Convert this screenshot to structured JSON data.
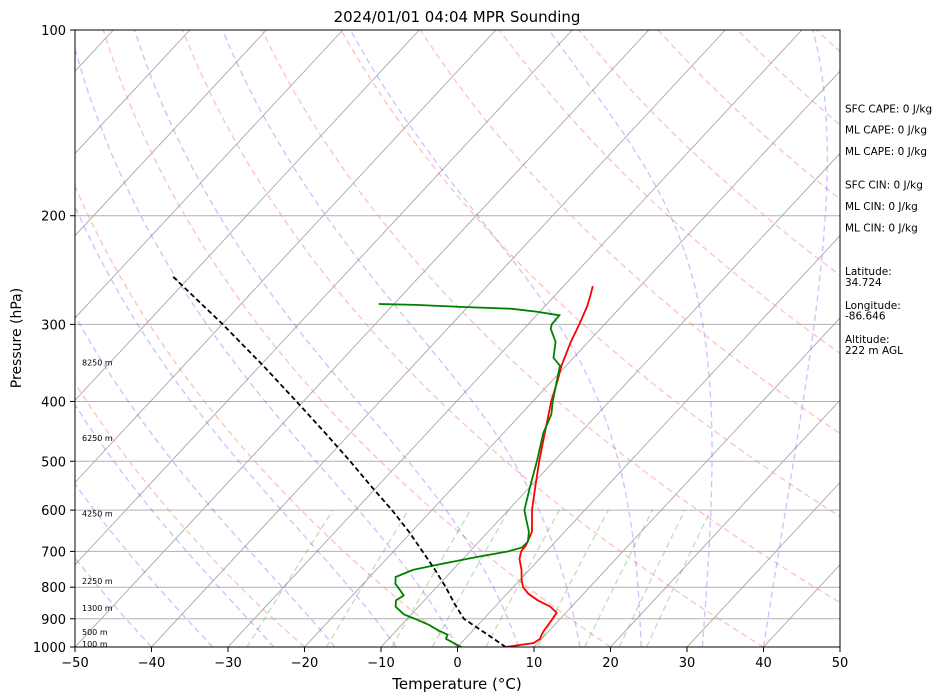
{
  "chart_data": {
    "type": "line",
    "title": "2024/01/01 04:04 MPR Sounding",
    "xlabel": "Temperature (°C)",
    "ylabel": "Pressure (hPa)",
    "xlim": [
      -50,
      50
    ],
    "ylim": [
      1000,
      100
    ],
    "yscale": "log",
    "x_ticks": [
      -50,
      -40,
      -30,
      -20,
      -10,
      0,
      10,
      20,
      30,
      40,
      50
    ],
    "y_ticks": [
      100,
      200,
      300,
      400,
      500,
      600,
      700,
      800,
      900,
      1000
    ],
    "grid": "horizontal pressure lines",
    "skew_isotherms": true,
    "background_lines": [
      "dry adiabats",
      "moist adiabats",
      "mixing ratio lines"
    ],
    "series": [
      {
        "key": "temperature",
        "color": "#ff0000",
        "points": [
          [
            1000,
            6.3
          ],
          [
            985,
            9.5
          ],
          [
            970,
            9.8
          ],
          [
            955,
            9.5
          ],
          [
            940,
            9.3
          ],
          [
            925,
            9.2
          ],
          [
            900,
            9.0
          ],
          [
            880,
            8.8
          ],
          [
            860,
            7.2
          ],
          [
            840,
            4.8
          ],
          [
            820,
            2.8
          ],
          [
            800,
            1.3
          ],
          [
            780,
            0.3
          ],
          [
            750,
            -1.0
          ],
          [
            720,
            -2.6
          ],
          [
            700,
            -3.3
          ],
          [
            685,
            -3.4
          ],
          [
            650,
            -4.3
          ],
          [
            600,
            -6.9
          ],
          [
            550,
            -9.3
          ],
          [
            500,
            -11.9
          ],
          [
            450,
            -14.6
          ],
          [
            400,
            -17.6
          ],
          [
            370,
            -19.3
          ],
          [
            350,
            -20.6
          ],
          [
            320,
            -22.3
          ],
          [
            300,
            -23.3
          ],
          [
            280,
            -24.5
          ],
          [
            270,
            -25.3
          ],
          [
            260,
            -26.2
          ]
        ]
      },
      {
        "key": "dewpoint",
        "color": "#008000",
        "points": [
          [
            1000,
            0.5
          ],
          [
            995,
            0.0
          ],
          [
            985,
            -1.0
          ],
          [
            970,
            -2.5
          ],
          [
            955,
            -2.8
          ],
          [
            940,
            -4.5
          ],
          [
            920,
            -6.5
          ],
          [
            900,
            -9.0
          ],
          [
            885,
            -11.0
          ],
          [
            860,
            -13.0
          ],
          [
            840,
            -13.7
          ],
          [
            825,
            -13.3
          ],
          [
            812,
            -14.2
          ],
          [
            790,
            -15.8
          ],
          [
            770,
            -16.6
          ],
          [
            750,
            -15.2
          ],
          [
            735,
            -12.5
          ],
          [
            715,
            -8.5
          ],
          [
            700,
            -5.0
          ],
          [
            690,
            -3.7
          ],
          [
            675,
            -3.6
          ],
          [
            650,
            -4.7
          ],
          [
            620,
            -6.6
          ],
          [
            600,
            -7.9
          ],
          [
            550,
            -10.0
          ],
          [
            500,
            -12.2
          ],
          [
            450,
            -14.8
          ],
          [
            420,
            -16.0
          ],
          [
            400,
            -17.4
          ],
          [
            370,
            -19.4
          ],
          [
            350,
            -20.8
          ],
          [
            340,
            -22.6
          ],
          [
            320,
            -24.3
          ],
          [
            305,
            -26.5
          ],
          [
            300,
            -26.9
          ],
          [
            290,
            -27.0
          ],
          [
            286,
            -30.5
          ],
          [
            283,
            -34.0
          ],
          [
            281,
            -41.0
          ],
          [
            279,
            -47.0
          ],
          [
            278,
            -52.0
          ]
        ]
      },
      {
        "key": "parcel",
        "color": "#000000",
        "style": "dashed",
        "points": [
          [
            1000,
            6.3
          ],
          [
            950,
            2.0
          ],
          [
            900,
            -2.6
          ],
          [
            850,
            -5.7
          ],
          [
            800,
            -8.8
          ],
          [
            750,
            -12.3
          ],
          [
            700,
            -16.2
          ],
          [
            650,
            -20.4
          ],
          [
            600,
            -25.2
          ],
          [
            550,
            -30.7
          ],
          [
            500,
            -36.6
          ],
          [
            450,
            -43.3
          ],
          [
            400,
            -50.9
          ],
          [
            350,
            -59.6
          ],
          [
            300,
            -69.9
          ],
          [
            250,
            -82.5
          ]
        ]
      }
    ],
    "height_labels": [
      {
        "text": "100 m",
        "p": 988
      },
      {
        "text": "500 m",
        "p": 945
      },
      {
        "text": "1300 m",
        "p": 865
      },
      {
        "text": "2250 m",
        "p": 782
      },
      {
        "text": "4250 m",
        "p": 608
      },
      {
        "text": "6250 m",
        "p": 458
      },
      {
        "text": "8250 m",
        "p": 346
      }
    ],
    "annotations": [
      {
        "text": "SFC CAPE: 0 J/kg",
        "p": 134
      },
      {
        "text": "ML CAPE: 0 J/kg",
        "p": 145
      },
      {
        "text": "ML CAPE: 0 J/kg",
        "p": 157
      },
      {
        "text": "SFC CIN: 0 J/kg",
        "p": 178
      },
      {
        "text": "ML CIN: 0 J/kg",
        "p": 193
      },
      {
        "text": "ML CIN: 0 J/kg",
        "p": 209
      },
      {
        "text": "Latitude:",
        "p": 246
      },
      {
        "text": "34.724",
        "p": 256
      },
      {
        "text": "Longitude:",
        "p": 279
      },
      {
        "text": "-86.646",
        "p": 290
      },
      {
        "text": "Altitude:",
        "p": 317
      },
      {
        "text": "222 m AGL",
        "p": 330
      }
    ]
  }
}
